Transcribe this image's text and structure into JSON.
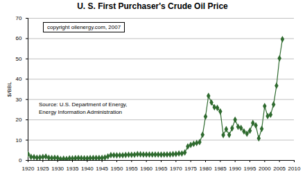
{
  "chart_data": {
    "type": "line",
    "title": "U. S. First Purchaser's Crude Oil Price",
    "y_label": "$/BBL",
    "annotations": [
      "copyright oilenergy.com, 2007",
      "Source: U.S. Department of Energy,",
      "Energy Information Administration"
    ],
    "x": [
      1920,
      1921,
      1922,
      1923,
      1924,
      1925,
      1926,
      1927,
      1928,
      1929,
      1930,
      1931,
      1932,
      1933,
      1934,
      1935,
      1936,
      1937,
      1938,
      1939,
      1940,
      1941,
      1942,
      1943,
      1944,
      1945,
      1946,
      1947,
      1948,
      1949,
      1950,
      1951,
      1952,
      1953,
      1954,
      1955,
      1956,
      1957,
      1958,
      1959,
      1960,
      1961,
      1962,
      1963,
      1964,
      1965,
      1966,
      1967,
      1968,
      1969,
      1970,
      1971,
      1972,
      1973,
      1974,
      1975,
      1976,
      1977,
      1978,
      1979,
      1980,
      1981,
      1982,
      1983,
      1984,
      1985,
      1986,
      1987,
      1988,
      1989,
      1990,
      1991,
      1992,
      1993,
      1994,
      1995,
      1996,
      1997,
      1998,
      1999,
      2000,
      2001,
      2002,
      2003,
      2004,
      2005,
      2006
    ],
    "values": [
      3.07,
      1.73,
      1.61,
      1.34,
      1.43,
      1.68,
      1.88,
      1.3,
      1.17,
      1.27,
      1.19,
      0.65,
      0.87,
      0.67,
      1.0,
      0.97,
      1.09,
      1.18,
      1.13,
      1.02,
      1.02,
      1.14,
      1.19,
      1.2,
      1.21,
      1.22,
      1.41,
      1.93,
      2.6,
      2.54,
      2.51,
      2.53,
      2.53,
      2.68,
      2.78,
      2.77,
      2.79,
      3.09,
      3.01,
      2.9,
      2.88,
      2.89,
      2.9,
      2.89,
      2.88,
      2.86,
      2.88,
      2.92,
      2.94,
      3.09,
      3.18,
      3.39,
      3.39,
      3.89,
      6.87,
      7.67,
      8.19,
      8.57,
      9.0,
      12.64,
      21.59,
      31.77,
      28.52,
      26.19,
      25.88,
      24.09,
      12.51,
      15.4,
      12.58,
      15.86,
      20.03,
      16.54,
      15.99,
      14.25,
      13.19,
      14.62,
      18.46,
      17.23,
      10.87,
      15.56,
      26.72,
      21.84,
      22.51,
      27.56,
      36.77,
      50.28,
      59.69
    ],
    "color": "#2f6b2f",
    "marker": "diamond",
    "xlim": [
      1920,
      2010
    ],
    "xticks": [
      1920,
      1925,
      1930,
      1935,
      1940,
      1945,
      1950,
      1955,
      1960,
      1965,
      1970,
      1975,
      1980,
      1985,
      1990,
      1995,
      2000,
      2005,
      2010
    ],
    "ylim": [
      0,
      70
    ],
    "yticks": [
      0,
      10,
      20,
      30,
      40,
      50,
      60,
      70
    ],
    "grid": true
  }
}
